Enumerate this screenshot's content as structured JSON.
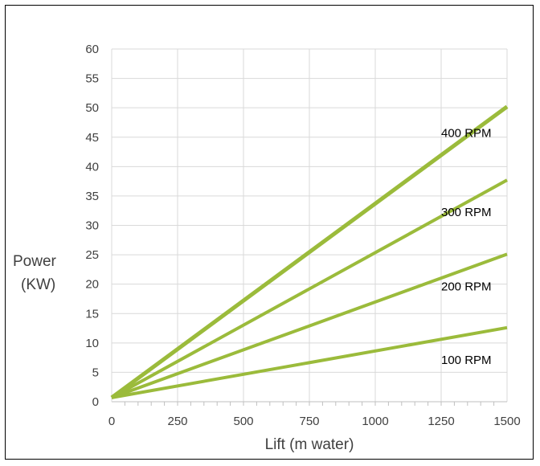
{
  "chart_data": {
    "type": "line",
    "title": "",
    "xlabel": "Lift (m water)",
    "ylabel_line1": "Power",
    "ylabel_line2": "(KW)",
    "xlim": [
      0,
      1500
    ],
    "ylim": [
      0,
      60
    ],
    "x_ticks": [
      0,
      250,
      500,
      750,
      1000,
      1250,
      1500
    ],
    "y_ticks": [
      0,
      5,
      10,
      15,
      20,
      25,
      30,
      35,
      40,
      45,
      50,
      55,
      60
    ],
    "grid": true,
    "line_color": "#9BBB3B",
    "series": [
      {
        "name": "400 RPM",
        "x": [
          0,
          1500
        ],
        "y": [
          0.7,
          50.2
        ]
      },
      {
        "name": "300 RPM",
        "x": [
          0,
          1500
        ],
        "y": [
          0.7,
          37.7
        ]
      },
      {
        "name": "200 RPM",
        "x": [
          0,
          1500
        ],
        "y": [
          0.7,
          25.1
        ]
      },
      {
        "name": "100 RPM",
        "x": [
          0,
          1500
        ],
        "y": [
          0.7,
          12.6
        ]
      }
    ]
  }
}
